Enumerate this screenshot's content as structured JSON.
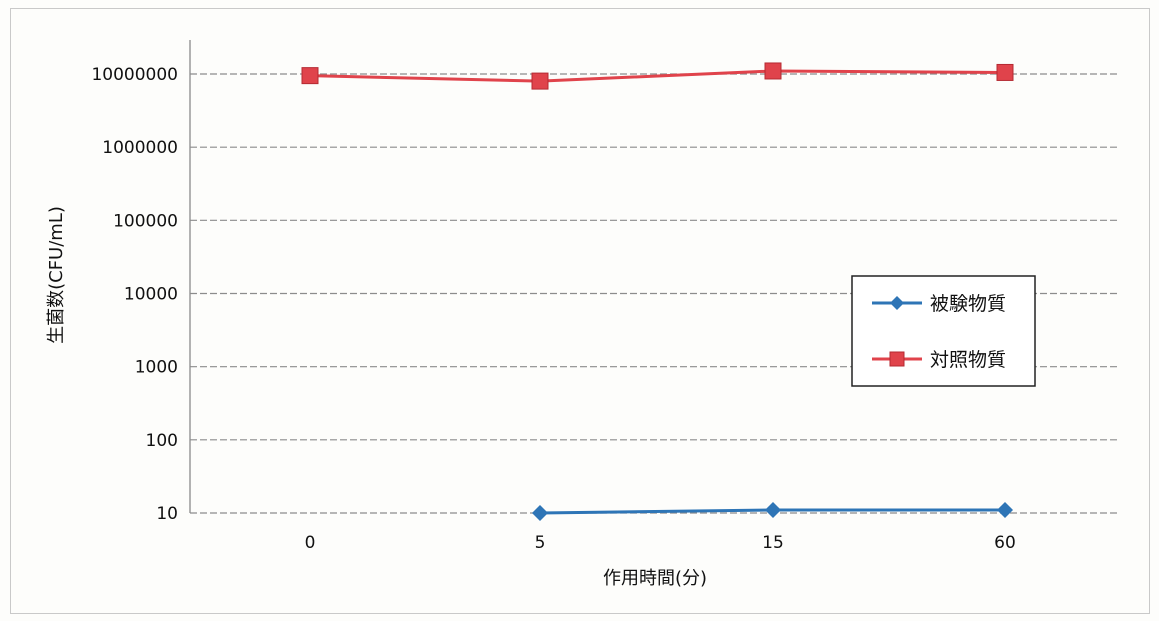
{
  "chart_data": {
    "type": "line",
    "title": "",
    "xlabel": "作用時間(分)",
    "ylabel": "生菌数(CFU/mL)",
    "yscale": "log",
    "ylim": [
      10,
      10000000
    ],
    "categories": [
      "0",
      "5",
      "15",
      "60"
    ],
    "y_ticks": [
      "10",
      "100",
      "1000",
      "10000",
      "100000",
      "1000000",
      "10000000"
    ],
    "grid": true,
    "legend_position": "right",
    "series": [
      {
        "name": "被験物質",
        "color": "#2e75b6",
        "marker": "diamond",
        "values": [
          null,
          10,
          11,
          11
        ]
      },
      {
        "name": "対照物質",
        "color": "#e0434b",
        "marker": "square",
        "values": [
          9500000,
          8000000,
          11000000,
          10500000
        ]
      }
    ]
  }
}
